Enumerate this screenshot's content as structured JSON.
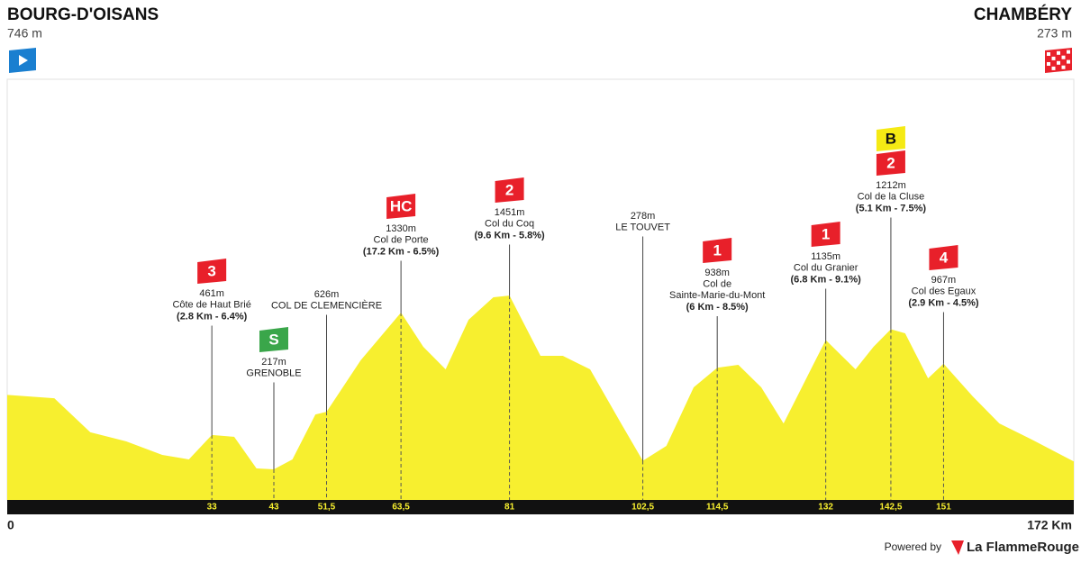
{
  "chart_data": {
    "type": "profile",
    "start": {
      "name": "BOURG-D'OISANS",
      "altitude": "746 m"
    },
    "finish": {
      "name": "CHAMBÉRY",
      "altitude": "273 m"
    },
    "x": [
      0,
      7.6,
      13.4,
      19.2,
      25,
      29.3,
      33,
      36.6,
      40.2,
      43,
      46,
      49.7,
      51.5,
      57,
      63.5,
      67.1,
      70.7,
      74.4,
      78.4,
      81,
      86,
      89.6,
      94,
      99,
      102.5,
      106.3,
      110.7,
      114.5,
      117.9,
      121.6,
      125.2,
      129.6,
      132,
      136.8,
      139.7,
      142.5,
      144.8,
      148.5,
      151,
      155.7,
      160,
      165.8,
      172
    ],
    "values": [
      746,
      722,
      480,
      416,
      320,
      288,
      461,
      448,
      224,
      217,
      288,
      607,
      626,
      991,
      1330,
      1087,
      927,
      1279,
      1439,
      1451,
      1023,
      1023,
      927,
      543,
      278,
      384,
      799,
      938,
      959,
      799,
      543,
      927,
      1135,
      927,
      1087,
      1212,
      1183,
      863,
      967,
      735,
      543,
      416,
      273
    ],
    "color": "#f7ef2f",
    "xlim": [
      0,
      172
    ],
    "x_end_label": "172 Km",
    "ylim": [
      0,
      2000
    ],
    "xticks": [
      33,
      43,
      {
        "value": 51.5,
        "label": "51,5"
      },
      {
        "value": 63.5,
        "label": "63,5"
      },
      81,
      {
        "value": 102.5,
        "label": "102,5"
      },
      {
        "value": 114.5,
        "label": "114,5"
      },
      132,
      {
        "value": 142.5,
        "label": "142,5"
      },
      151
    ],
    "annotations": [
      {
        "badges": [
          {
            "text": "3",
            "color": "#e8202a"
          }
        ],
        "altitude": "461m",
        "name": [
          "Côte de Haut Brié"
        ],
        "stats": "(2.8 Km - 6.4%)"
      },
      {
        "badges": [
          {
            "text": "S",
            "color": "#3aa64a"
          }
        ],
        "altitude": "217m",
        "name": [
          "GRENOBLE"
        ]
      },
      {
        "badges": [],
        "altitude": "626m",
        "name": [
          "COL DE CLEMENCIÈRE"
        ]
      },
      {
        "badges": [
          {
            "text": "HC",
            "color": "#e8202a"
          }
        ],
        "altitude": "1330m",
        "name": [
          "Col de Porte"
        ],
        "stats": "(17.2 Km - 6.5%)"
      },
      {
        "badges": [
          {
            "text": "2",
            "color": "#e8202a"
          }
        ],
        "altitude": "1451m",
        "name": [
          "Col du Coq"
        ],
        "stats": "(9.6 Km - 5.8%)"
      },
      {
        "badges": [],
        "altitude": "278m",
        "name": [
          "LE TOUVET"
        ]
      },
      {
        "badges": [
          {
            "text": "1",
            "color": "#e8202a"
          }
        ],
        "altitude": "938m",
        "name": [
          "Col de",
          "Sainte-Marie-du-Mont"
        ],
        "stats": "(6 Km - 8.5%)"
      },
      {
        "badges": [
          {
            "text": "1",
            "color": "#e8202a"
          }
        ],
        "altitude": "1135m",
        "name": [
          "Col du Granier"
        ],
        "stats": "(6.8 Km - 9.1%)"
      },
      {
        "badges": [
          {
            "text": "B",
            "color": "#f5ea14"
          },
          {
            "text": "2",
            "color": "#e8202a"
          }
        ],
        "altitude": "1212m",
        "name": [
          "Col de la Cluse"
        ],
        "stats": "(5.1 Km - 7.5%)"
      },
      {
        "badges": [
          {
            "text": "4",
            "color": "#e8202a"
          }
        ],
        "altitude": "967m",
        "name": [
          "Col des Egaux"
        ],
        "stats": "(2.9 Km - 4.5%)"
      }
    ]
  },
  "footer": {
    "powered": "Powered by",
    "brand": "La FlammeRouge"
  }
}
